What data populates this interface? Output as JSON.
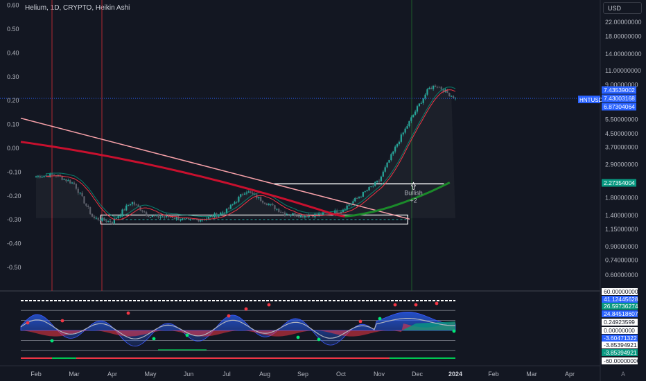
{
  "header": {
    "title": "Helium, 1D, CRYPTO, Heikin Ashi",
    "currency": "USD",
    "a_button": "A"
  },
  "chart_data": {
    "type": "candlestick",
    "title": "Helium, 1D, CRYPTO, Heikin Ashi",
    "symbol": "HNTUSD",
    "scale": "log",
    "grid": false,
    "x_ticks": [
      "Feb",
      "Mar",
      "Apr",
      "May",
      "Jun",
      "Jul",
      "Aug",
      "Sep",
      "Oct",
      "Nov",
      "Dec",
      "2024",
      "Feb",
      "Mar",
      "Apr"
    ],
    "y_left_ticks": [
      "0.60",
      "0.50",
      "0.40",
      "0.30",
      "0.20",
      "0.10",
      "0.00",
      "-0.10",
      "-0.20",
      "-0.30",
      "-0.40",
      "-0.50"
    ],
    "y_left_values": [
      0.6,
      0.5,
      0.4,
      0.3,
      0.2,
      0.1,
      0.0,
      -0.1,
      -0.2,
      -0.3,
      -0.4,
      -0.5
    ],
    "y_right_ticks": [
      "22.00000000",
      "18.00000000",
      "14.00000000",
      "11.00000000",
      "9.00000000",
      "5.50000000",
      "4.50000000",
      "3.70000000",
      "2.90000000",
      "1.80000000",
      "1.40000000",
      "1.15000000",
      "0.90000000",
      "0.74000000",
      "0.60000000"
    ],
    "y_right_values": [
      22,
      18,
      14,
      11,
      9,
      5.5,
      4.5,
      3.7,
      2.9,
      1.8,
      1.4,
      1.15,
      0.9,
      0.74,
      0.6
    ],
    "price_labels": [
      {
        "label": "7.43539002",
        "price": 7.43539,
        "color": "#2962ff"
      },
      {
        "label": "7.43003168",
        "price": 7.43,
        "color": "#2962ff"
      },
      {
        "label": "6.87304064",
        "price": 6.873,
        "color": "#2962ff"
      },
      {
        "label": "2.27354004",
        "price": 2.2735,
        "color": "#089981"
      }
    ],
    "symbol_tag": "HNTUSD",
    "annotation": {
      "text": "Bullish",
      "sub": "+2",
      "price": 2.2
    },
    "oscillator_labels": [
      {
        "label": "60.00000000",
        "color": "#ffffff"
      },
      {
        "label": "41.12445628",
        "color": "#2962ff"
      },
      {
        "label": "26.59736274",
        "color": "#089981"
      },
      {
        "label": "24.84518607",
        "color": "#2962ff"
      },
      {
        "label": "0.24923599",
        "color": "#ffffff"
      },
      {
        "label": "0.00000000",
        "color": "#ffffff"
      },
      {
        "label": "-3.60471322",
        "color": "#2962ff"
      },
      {
        "label": "-3.85394921",
        "color": "#ffffff"
      },
      {
        "label": "-3.85394921",
        "color": "#089981"
      },
      {
        "label": "-60.00000000",
        "color": "#ffffff"
      }
    ],
    "price_series": {
      "x_month_index": [
        0,
        0.5,
        1,
        1.5,
        2,
        2.5,
        3,
        3.5,
        4,
        4.5,
        5,
        5.5,
        6,
        6.5,
        7,
        7.5,
        8,
        8.5,
        9,
        9.5,
        10,
        10.3,
        10.5,
        10.8,
        11
      ],
      "close": [
        2.45,
        2.5,
        2.2,
        1.35,
        1.28,
        1.7,
        1.38,
        1.38,
        1.3,
        1.35,
        1.5,
        2.0,
        1.7,
        1.45,
        1.4,
        1.42,
        1.5,
        1.85,
        2.3,
        4.0,
        6.5,
        8.5,
        9.0,
        8.0,
        7.43
      ]
    }
  }
}
